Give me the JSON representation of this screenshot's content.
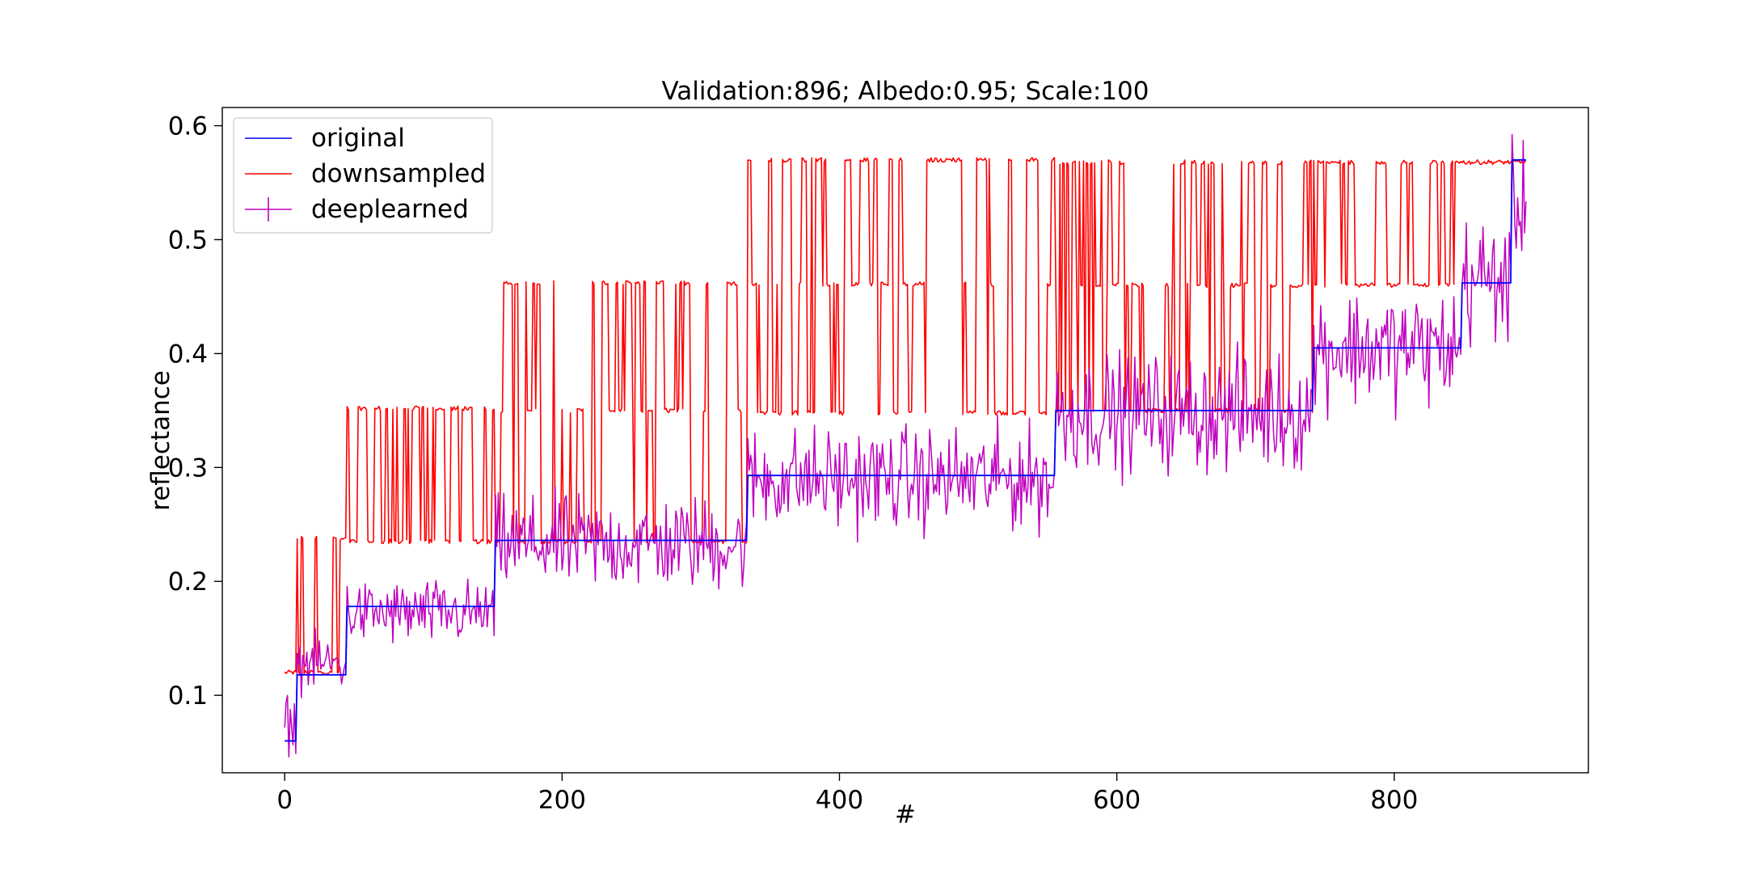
{
  "chart_data": {
    "type": "line",
    "title": "Validation:896; Albedo:0.95; Scale:100",
    "xlabel": "#",
    "ylabel": "reflectance",
    "xlim": [
      -45,
      940
    ],
    "ylim": [
      0.032,
      0.616
    ],
    "xticks": [
      0,
      200,
      400,
      600,
      800
    ],
    "yticks": [
      0.1,
      0.2,
      0.3,
      0.4,
      0.5,
      0.6
    ],
    "xtick_labels": [
      "0",
      "200",
      "400",
      "600",
      "800"
    ],
    "ytick_labels": [
      "0.1",
      "0.2",
      "0.3",
      "0.4",
      "0.5",
      "0.6"
    ],
    "grid": false,
    "legend": {
      "position": "top-left"
    },
    "n_points": 896,
    "series": [
      {
        "name": "original",
        "color": "#0000ff",
        "style": "line",
        "steps": [
          {
            "x_start": 0,
            "x_end": 8,
            "value": 0.06
          },
          {
            "x_start": 9,
            "x_end": 44,
            "value": 0.118
          },
          {
            "x_start": 45,
            "x_end": 151,
            "value": 0.178
          },
          {
            "x_start": 152,
            "x_end": 333,
            "value": 0.236
          },
          {
            "x_start": 334,
            "x_end": 555,
            "value": 0.293
          },
          {
            "x_start": 556,
            "x_end": 741,
            "value": 0.35
          },
          {
            "x_start": 742,
            "x_end": 848,
            "value": 0.405
          },
          {
            "x_start": 849,
            "x_end": 884,
            "value": 0.462
          },
          {
            "x_start": 885,
            "x_end": 895,
            "value": 0.57
          }
        ]
      },
      {
        "name": "downsampled",
        "color": "#ff0000",
        "style": "line",
        "segments": [
          {
            "x_start": 0,
            "x_end": 8,
            "levels": [
              0.12
            ]
          },
          {
            "x_start": 9,
            "x_end": 44,
            "levels": [
              0.12,
              0.238
            ]
          },
          {
            "x_start": 45,
            "x_end": 151,
            "levels": [
              0.235,
              0.352
            ]
          },
          {
            "x_start": 152,
            "x_end": 333,
            "levels": [
              0.235,
              0.35,
              0.462
            ]
          },
          {
            "x_start": 334,
            "x_end": 555,
            "levels": [
              0.348,
              0.461,
              0.57
            ]
          },
          {
            "x_start": 556,
            "x_end": 741,
            "levels": [
              0.35,
              0.46,
              0.568
            ]
          },
          {
            "x_start": 742,
            "x_end": 848,
            "levels": [
              0.46,
              0.568
            ]
          },
          {
            "x_start": 849,
            "x_end": 895,
            "levels": [
              0.568
            ]
          }
        ]
      },
      {
        "name": "deeplearned",
        "color": "#bf00bf",
        "style": "line-errorbar",
        "noise_by_segment": [
          {
            "x_start": 0,
            "x_end": 8,
            "offset": 0.015,
            "spread": 0.012
          },
          {
            "x_start": 9,
            "x_end": 44,
            "offset": 0.01,
            "spread": 0.012
          },
          {
            "x_start": 45,
            "x_end": 151,
            "offset": -0.006,
            "spread": 0.014
          },
          {
            "x_start": 152,
            "x_end": 333,
            "offset": -0.003,
            "spread": 0.02
          },
          {
            "x_start": 334,
            "x_end": 555,
            "offset": -0.003,
            "spread": 0.022
          },
          {
            "x_start": 556,
            "x_end": 741,
            "offset": -0.002,
            "spread": 0.025
          },
          {
            "x_start": 742,
            "x_end": 848,
            "offset": 0.0,
            "spread": 0.025
          },
          {
            "x_start": 849,
            "x_end": 884,
            "offset": 0.003,
            "spread": 0.028
          },
          {
            "x_start": 885,
            "x_end": 895,
            "offset": -0.04,
            "spread": 0.025
          }
        ]
      }
    ]
  }
}
